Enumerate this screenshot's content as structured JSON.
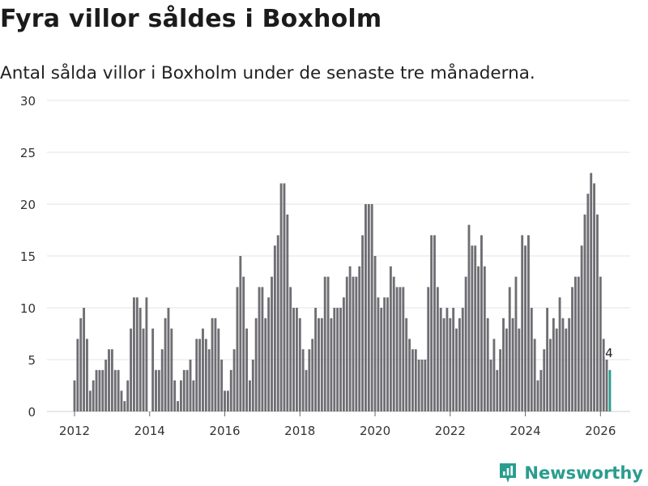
{
  "header": {
    "title": "Fyra villor såldes i Boxholm",
    "subtitle": "Antal sålda villor i Boxholm under de senaste tre månaderna."
  },
  "brand": {
    "name": "Newsworthy",
    "color": "#2a9d8f"
  },
  "chart_data": {
    "type": "bar",
    "title": "Fyra villor såldes i Boxholm",
    "subtitle": "Antal sålda villor i Boxholm under de senaste tre månaderna.",
    "xlabel": "",
    "ylabel": "",
    "ylim": [
      0,
      30
    ],
    "yticks": [
      0,
      5,
      10,
      15,
      20,
      25,
      30
    ],
    "grid": true,
    "x_tick_labels": [
      "2012",
      "2014",
      "2016",
      "2018",
      "2020",
      "2022",
      "2024",
      "2026"
    ],
    "x_start": "2012-01",
    "interval": "monthly",
    "bar_color": "#6e6e73",
    "highlight_color": "#2a9d8f",
    "highlight_label": "4",
    "values": [
      3,
      7,
      9,
      10,
      7,
      2,
      3,
      4,
      4,
      4,
      5,
      6,
      6,
      4,
      4,
      2,
      1,
      3,
      8,
      11,
      11,
      10,
      8,
      11,
      0,
      8,
      4,
      4,
      6,
      9,
      10,
      8,
      3,
      1,
      3,
      4,
      4,
      5,
      3,
      7,
      7,
      8,
      7,
      6,
      9,
      9,
      8,
      5,
      2,
      2,
      4,
      6,
      12,
      15,
      13,
      8,
      3,
      5,
      9,
      12,
      12,
      9,
      11,
      13,
      16,
      17,
      22,
      22,
      19,
      12,
      10,
      10,
      9,
      6,
      4,
      6,
      7,
      10,
      9,
      9,
      13,
      13,
      9,
      10,
      10,
      10,
      11,
      13,
      14,
      13,
      13,
      14,
      17,
      20,
      20,
      20,
      15,
      11,
      10,
      11,
      11,
      14,
      13,
      12,
      12,
      12,
      9,
      7,
      6,
      6,
      5,
      5,
      5,
      12,
      17,
      17,
      12,
      10,
      9,
      10,
      9,
      10,
      8,
      9,
      10,
      13,
      18,
      16,
      16,
      14,
      17,
      14,
      9,
      5,
      7,
      4,
      6,
      9,
      8,
      12,
      9,
      13,
      8,
      17,
      16,
      17,
      10,
      7,
      3,
      4,
      6,
      10,
      7,
      9,
      8,
      11,
      9,
      8,
      9,
      12,
      13,
      13,
      16,
      19,
      21,
      23,
      22,
      19,
      13,
      7,
      5,
      4
    ]
  }
}
